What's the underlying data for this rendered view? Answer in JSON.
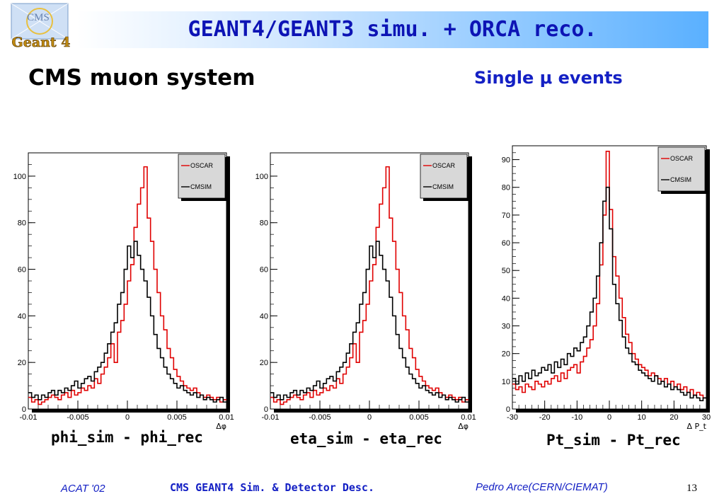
{
  "header": {
    "title": "GEANT4/GEANT3 simu. + ORCA reco."
  },
  "logo": {
    "top_text": "CMS",
    "bottom_text": "Geant 4"
  },
  "subtitle": "CMS muon system",
  "single_events": "Single μ events",
  "footer": {
    "left": "ACAT '02",
    "center": "CMS GEANT4 Sim. & Detector Desc.",
    "right": "Pedro Arce(CERN/CIEMAT)",
    "page": "13"
  },
  "colors": {
    "oscar": "#e00000",
    "cmsim": "#000000",
    "title": "#0d14b5",
    "accent": "#1420c4"
  },
  "chart_data": [
    {
      "type": "histogram",
      "caption": "phi_sim - phi_rec",
      "xlabel": "Δφ",
      "xlim": [
        -0.01,
        0.01
      ],
      "ylim": [
        0,
        110
      ],
      "x_ticks": [
        "-0.01",
        "-0.005",
        "0",
        "0.005",
        "0.01"
      ],
      "y_ticks": [
        "0",
        "20",
        "40",
        "60",
        "80",
        "100"
      ],
      "legend": [
        "OSCAR",
        "CMSIM"
      ],
      "legend_position": "top-right",
      "series": [
        {
          "name": "OSCAR",
          "color": "#e00000",
          "values": [
            5,
            3,
            4,
            2,
            3,
            4,
            5,
            6,
            5,
            4,
            6,
            7,
            5,
            8,
            6,
            7,
            9,
            8,
            10,
            9,
            13,
            11,
            15,
            18,
            22,
            28,
            20,
            33,
            38,
            45,
            55,
            62,
            78,
            88,
            95,
            104,
            82,
            72,
            60,
            50,
            40,
            34,
            26,
            22,
            17,
            14,
            12,
            10,
            9,
            8,
            9,
            7,
            6,
            5,
            6,
            5,
            4,
            5,
            3,
            4
          ]
        },
        {
          "name": "CMSIM",
          "color": "#000000",
          "values": [
            7,
            5,
            6,
            4,
            6,
            5,
            7,
            8,
            6,
            8,
            7,
            9,
            8,
            10,
            12,
            9,
            11,
            13,
            14,
            12,
            16,
            18,
            20,
            24,
            28,
            33,
            37,
            45,
            50,
            60,
            70,
            65,
            72,
            66,
            60,
            55,
            48,
            40,
            32,
            26,
            22,
            18,
            15,
            13,
            11,
            9,
            10,
            8,
            7,
            6,
            7,
            5,
            6,
            4,
            5,
            4,
            3,
            4,
            5,
            3
          ]
        }
      ]
    },
    {
      "type": "histogram",
      "caption": "eta_sim - eta_rec",
      "xlabel": "Δφ",
      "xlim": [
        -0.01,
        0.01
      ],
      "ylim": [
        0,
        110
      ],
      "x_ticks": [
        "-0.01",
        "-0.005",
        "0",
        "0.005",
        "0.01"
      ],
      "y_ticks": [
        "0",
        "20",
        "40",
        "60",
        "80",
        "100"
      ],
      "legend": [
        "OSCAR",
        "CMSIM"
      ],
      "legend_position": "top-right",
      "series": [
        {
          "name": "OSCAR",
          "color": "#e00000",
          "values": [
            5,
            3,
            4,
            2,
            3,
            4,
            5,
            6,
            5,
            4,
            6,
            7,
            5,
            8,
            6,
            7,
            9,
            8,
            10,
            9,
            13,
            11,
            15,
            18,
            22,
            28,
            20,
            33,
            38,
            45,
            55,
            62,
            78,
            88,
            95,
            104,
            82,
            72,
            60,
            50,
            40,
            34,
            26,
            22,
            17,
            14,
            12,
            10,
            9,
            8,
            9,
            7,
            6,
            5,
            6,
            5,
            4,
            5,
            3,
            4
          ]
        },
        {
          "name": "CMSIM",
          "color": "#000000",
          "values": [
            7,
            5,
            6,
            4,
            6,
            5,
            7,
            8,
            6,
            8,
            7,
            9,
            8,
            10,
            12,
            9,
            11,
            13,
            14,
            12,
            16,
            18,
            20,
            24,
            28,
            33,
            37,
            45,
            50,
            60,
            70,
            65,
            72,
            66,
            60,
            55,
            48,
            40,
            32,
            26,
            22,
            18,
            15,
            13,
            11,
            9,
            10,
            8,
            7,
            6,
            7,
            5,
            6,
            4,
            5,
            4,
            3,
            4,
            5,
            3
          ]
        }
      ]
    },
    {
      "type": "histogram",
      "caption": "Pt_sim - Pt_rec",
      "xlabel": "Δ P_t",
      "xlim": [
        -30,
        30
      ],
      "ylim": [
        0,
        95
      ],
      "x_ticks": [
        "-30",
        "-20",
        "-10",
        "0",
        "10",
        "20",
        "30"
      ],
      "y_ticks": [
        "0",
        "10",
        "20",
        "30",
        "40",
        "50",
        "60",
        "70",
        "80",
        "90"
      ],
      "legend": [
        "OSCAR",
        "CMSIM"
      ],
      "legend_position": "top-right",
      "series": [
        {
          "name": "OSCAR",
          "color": "#e00000",
          "values": [
            9,
            7,
            8,
            6,
            9,
            8,
            7,
            10,
            9,
            8,
            10,
            9,
            11,
            12,
            10,
            13,
            11,
            14,
            15,
            16,
            13,
            17,
            19,
            22,
            25,
            30,
            38,
            52,
            70,
            93,
            72,
            55,
            48,
            40,
            33,
            27,
            24,
            20,
            18,
            16,
            15,
            14,
            12,
            13,
            12,
            11,
            10,
            11,
            9,
            10,
            8,
            9,
            7,
            8,
            6,
            7,
            5,
            6,
            5,
            4
          ]
        },
        {
          "name": "CMSIM",
          "color": "#000000",
          "values": [
            11,
            9,
            12,
            10,
            13,
            11,
            14,
            12,
            13,
            15,
            14,
            16,
            13,
            17,
            15,
            18,
            16,
            20,
            19,
            22,
            21,
            24,
            26,
            30,
            35,
            40,
            48,
            60,
            75,
            80,
            65,
            45,
            38,
            32,
            26,
            22,
            20,
            17,
            16,
            14,
            13,
            12,
            11,
            10,
            12,
            9,
            10,
            8,
            9,
            7,
            8,
            7,
            6,
            5,
            6,
            4,
            5,
            4,
            3,
            4
          ]
        }
      ]
    }
  ]
}
